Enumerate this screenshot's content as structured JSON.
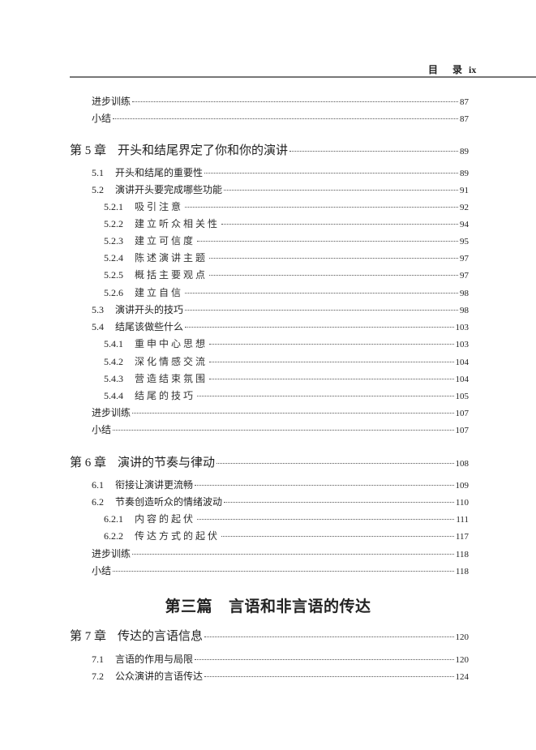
{
  "header": {
    "left": "目",
    "mid": "录",
    "page": "ix"
  },
  "part": {
    "label": "第三篇",
    "title": "言语和非言语的传达"
  },
  "entries": [
    {
      "level": 1,
      "num": "",
      "title": "进步训练",
      "page": "87"
    },
    {
      "level": 1,
      "num": "",
      "title": "小结",
      "page": "87"
    },
    {
      "level": 0,
      "num": "第 5 章",
      "title": "开头和结尾界定了你和你的演讲",
      "page": "89"
    },
    {
      "level": 1,
      "num": "5.1",
      "title": "开头和结尾的重要性",
      "page": "89"
    },
    {
      "level": 1,
      "num": "5.2",
      "title": "演讲开头要完成哪些功能",
      "page": "91"
    },
    {
      "level": 2,
      "num": "5.2.1",
      "title": "吸引注意",
      "page": "92"
    },
    {
      "level": 2,
      "num": "5.2.2",
      "title": "建立听众相关性",
      "page": "94"
    },
    {
      "level": 2,
      "num": "5.2.3",
      "title": "建立可信度",
      "page": "95"
    },
    {
      "level": 2,
      "num": "5.2.4",
      "title": "陈述演讲主题",
      "page": "97"
    },
    {
      "level": 2,
      "num": "5.2.5",
      "title": "概括主要观点",
      "page": "97"
    },
    {
      "level": 2,
      "num": "5.2.6",
      "title": "建立自信",
      "page": "98"
    },
    {
      "level": 1,
      "num": "5.3",
      "title": "演讲开头的技巧",
      "page": "98"
    },
    {
      "level": 1,
      "num": "5.4",
      "title": "结尾该做些什么",
      "page": "103"
    },
    {
      "level": 2,
      "num": "5.4.1",
      "title": "重申中心思想",
      "page": "103"
    },
    {
      "level": 2,
      "num": "5.4.2",
      "title": "深化情感交流",
      "page": "104"
    },
    {
      "level": 2,
      "num": "5.4.3",
      "title": "营造结束氛围",
      "page": "104"
    },
    {
      "level": 2,
      "num": "5.4.4",
      "title": "结尾的技巧",
      "page": "105"
    },
    {
      "level": 1,
      "num": "",
      "title": "进步训练",
      "page": "107"
    },
    {
      "level": 1,
      "num": "",
      "title": "小结",
      "page": "107"
    },
    {
      "level": 0,
      "num": "第 6 章",
      "title": "演讲的节奏与律动",
      "page": "108"
    },
    {
      "level": 1,
      "num": "6.1",
      "title": "衔接让演讲更流畅",
      "page": "109"
    },
    {
      "level": 1,
      "num": "6.2",
      "title": "节奏创造听众的情绪波动",
      "page": "110"
    },
    {
      "level": 2,
      "num": "6.2.1",
      "title": "内容的起伏",
      "page": "111"
    },
    {
      "level": 2,
      "num": "6.2.2",
      "title": "传达方式的起伏",
      "page": "117"
    },
    {
      "level": 1,
      "num": "",
      "title": "进步训练",
      "page": "118"
    },
    {
      "level": 1,
      "num": "",
      "title": "小结",
      "page": "118"
    },
    {
      "level": 0,
      "num": "第 7 章",
      "title": "传达的言语信息",
      "page": "120"
    },
    {
      "level": 1,
      "num": "7.1",
      "title": "言语的作用与局限",
      "page": "120"
    },
    {
      "level": 1,
      "num": "7.2",
      "title": "公众演讲的言语传达",
      "page": "124"
    }
  ]
}
